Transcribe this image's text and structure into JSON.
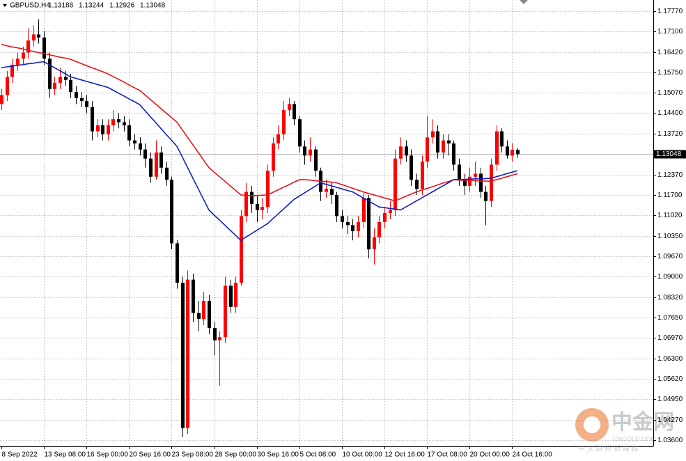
{
  "chart_data": {
    "type": "candlestick",
    "title": "GBPUSD,H4",
    "up_color": "#ff0000",
    "down_color": "#000000",
    "grid": true,
    "categories": [
      "8 Sep 2022",
      null,
      null,
      null,
      null,
      null,
      null,
      null,
      "13 Sep 08:00",
      null,
      null,
      null,
      null,
      null,
      null,
      null,
      "16 Sep 00:00",
      null,
      null,
      null,
      null,
      null,
      null,
      null,
      "20 Sep 16:00",
      null,
      null,
      null,
      null,
      null,
      null,
      null,
      "23 Sep 08:00",
      null,
      null,
      null,
      null,
      null,
      null,
      null,
      "28 Sep 00:00",
      null,
      null,
      null,
      null,
      null,
      null,
      null,
      "30 Sep 16:00",
      null,
      null,
      null,
      null,
      null,
      null,
      null,
      "5 Oct 08:00",
      null,
      null,
      null,
      null,
      null,
      null,
      null,
      "10 Oct 00:00",
      null,
      null,
      null,
      null,
      null,
      null,
      null,
      "12 Oct 16:00",
      null,
      null,
      null,
      null,
      null,
      null,
      null,
      "17 Oct 08:00",
      null,
      null,
      null,
      null,
      null,
      null,
      null,
      "20 Oct 00:00",
      null,
      null,
      null,
      null,
      null,
      null,
      null,
      "24 Oct 16:00",
      null
    ],
    "open": [
      1.147,
      1.15,
      1.156,
      1.16,
      1.162,
      1.164,
      1.168,
      1.17,
      1.169,
      1.162,
      1.152,
      1.154,
      1.156,
      1.155,
      1.151,
      1.149,
      1.148,
      1.146,
      1.138,
      1.14,
      1.137,
      1.14,
      1.142,
      1.141,
      1.14,
      1.135,
      1.134,
      1.132,
      1.129,
      1.123,
      1.131,
      1.126,
      1.122,
      1.101,
      1.088,
      1.04,
      1.089,
      1.078,
      1.076,
      1.082,
      1.073,
      1.069,
      1.07,
      1.087,
      1.08,
      1.088,
      1.11,
      1.118,
      1.114,
      1.112,
      1.113,
      1.125,
      1.134,
      1.137,
      1.145,
      1.147,
      1.142,
      1.133,
      1.13,
      1.132,
      1.125,
      1.118,
      1.119,
      1.117,
      1.11,
      1.108,
      1.107,
      1.105,
      1.108,
      1.116,
      1.099,
      1.103,
      1.108,
      1.111,
      1.112,
      1.129,
      1.133,
      1.13,
      1.122,
      1.119,
      1.128,
      1.136,
      1.138,
      1.131,
      1.135,
      1.134,
      1.127,
      1.122,
      1.12,
      1.123,
      1.124,
      1.118,
      1.115,
      1.127,
      1.138,
      1.133,
      1.13,
      1.13188
    ],
    "high": [
      1.152,
      1.158,
      1.162,
      1.164,
      1.166,
      1.172,
      1.173,
      1.175,
      1.171,
      1.164,
      1.156,
      1.159,
      1.158,
      1.157,
      1.153,
      1.151,
      1.15,
      1.148,
      1.142,
      1.142,
      1.142,
      1.145,
      1.144,
      1.143,
      1.142,
      1.137,
      1.136,
      1.134,
      1.131,
      1.135,
      1.133,
      1.128,
      1.123,
      1.102,
      1.09,
      1.092,
      1.091,
      1.082,
      1.085,
      1.084,
      1.075,
      1.072,
      1.09,
      1.089,
      1.09,
      1.112,
      1.121,
      1.12,
      1.117,
      1.116,
      1.127,
      1.136,
      1.14,
      1.148,
      1.149,
      1.148,
      1.143,
      1.135,
      1.136,
      1.133,
      1.126,
      1.122,
      1.121,
      1.118,
      1.112,
      1.11,
      1.109,
      1.11,
      1.118,
      1.117,
      1.106,
      1.11,
      1.113,
      1.115,
      1.132,
      1.136,
      1.135,
      1.132,
      1.124,
      1.13,
      1.143,
      1.142,
      1.14,
      1.137,
      1.137,
      1.135,
      1.129,
      1.124,
      1.126,
      1.128,
      1.126,
      1.12,
      1.129,
      1.14,
      1.139,
      1.135,
      1.134,
      1.13244
    ],
    "low": [
      1.145,
      1.148,
      1.154,
      1.158,
      1.16,
      1.162,
      1.166,
      1.167,
      1.16,
      1.149,
      1.15,
      1.152,
      1.153,
      1.149,
      1.147,
      1.146,
      1.144,
      1.135,
      1.136,
      1.135,
      1.135,
      1.138,
      1.139,
      1.138,
      1.133,
      1.132,
      1.13,
      1.126,
      1.121,
      1.122,
      1.124,
      1.12,
      1.099,
      1.086,
      1.037,
      1.038,
      1.075,
      1.072,
      1.074,
      1.071,
      1.064,
      1.054,
      1.068,
      1.078,
      1.078,
      1.087,
      1.108,
      1.111,
      1.108,
      1.109,
      1.111,
      1.123,
      1.132,
      1.135,
      1.143,
      1.14,
      1.131,
      1.127,
      1.128,
      1.123,
      1.115,
      1.116,
      1.114,
      1.108,
      1.106,
      1.104,
      1.102,
      1.103,
      1.106,
      1.096,
      1.094,
      1.101,
      1.106,
      1.109,
      1.11,
      1.127,
      1.128,
      1.12,
      1.117,
      1.117,
      1.126,
      1.134,
      1.129,
      1.129,
      1.13,
      1.125,
      1.12,
      1.117,
      1.118,
      1.12,
      1.116,
      1.107,
      1.113,
      1.125,
      1.131,
      1.129,
      1.128,
      1.12926
    ],
    "close": [
      1.15,
      1.156,
      1.16,
      1.162,
      1.164,
      1.168,
      1.17,
      1.169,
      1.162,
      1.152,
      1.154,
      1.156,
      1.155,
      1.151,
      1.149,
      1.148,
      1.146,
      1.138,
      1.14,
      1.137,
      1.14,
      1.142,
      1.141,
      1.14,
      1.135,
      1.134,
      1.132,
      1.129,
      1.123,
      1.131,
      1.126,
      1.122,
      1.101,
      1.088,
      1.04,
      1.089,
      1.078,
      1.076,
      1.082,
      1.073,
      1.069,
      1.07,
      1.087,
      1.08,
      1.088,
      1.11,
      1.118,
      1.114,
      1.112,
      1.113,
      1.125,
      1.134,
      1.137,
      1.145,
      1.147,
      1.142,
      1.133,
      1.13,
      1.132,
      1.125,
      1.118,
      1.119,
      1.117,
      1.11,
      1.108,
      1.107,
      1.105,
      1.108,
      1.116,
      1.099,
      1.103,
      1.108,
      1.111,
      1.112,
      1.129,
      1.133,
      1.13,
      1.122,
      1.119,
      1.128,
      1.136,
      1.138,
      1.131,
      1.135,
      1.134,
      1.127,
      1.122,
      1.12,
      1.123,
      1.124,
      1.118,
      1.115,
      1.127,
      1.138,
      1.133,
      1.13,
      1.1319,
      1.13048
    ],
    "overlays": [
      {
        "color": "#e8141b",
        "values": [
          1.1667,
          1.1663,
          1.1659,
          1.1656,
          1.1652,
          1.1648,
          1.1644,
          1.164,
          1.1637,
          1.1633,
          1.1629,
          1.1625,
          1.1622,
          1.1618,
          1.1611,
          1.1604,
          1.1597,
          1.159,
          1.1584,
          1.1577,
          1.157,
          1.1561,
          1.1552,
          1.1543,
          1.1533,
          1.1524,
          1.1515,
          1.15,
          1.1485,
          1.147,
          1.1455,
          1.144,
          1.1425,
          1.141,
          1.1385,
          1.136,
          1.1335,
          1.131,
          1.1285,
          1.126,
          1.1245,
          1.123,
          1.1215,
          1.12,
          1.1185,
          1.117,
          1.1168,
          1.1167,
          1.1168,
          1.1169,
          1.117,
          1.1178,
          1.1187,
          1.1195,
          1.1203,
          1.1212,
          1.122,
          1.122,
          1.1219,
          1.1217,
          1.1215,
          1.1214,
          1.1212,
          1.121,
          1.1204,
          1.1198,
          1.1192,
          1.1186,
          1.118,
          1.1175,
          1.117,
          1.1165,
          1.116,
          1.1155,
          1.115,
          1.1158,
          1.1165,
          1.1173,
          1.118,
          1.1186,
          1.1191,
          1.1197,
          1.1203,
          1.1209,
          1.1214,
          1.122,
          1.1219,
          1.1218,
          1.1218,
          1.1217,
          1.1216,
          1.1216,
          1.1215,
          1.122,
          1.1225,
          1.123,
          1.1235,
          1.124
        ]
      },
      {
        "color": "#1020c0",
        "values": [
          1.159,
          1.1593,
          1.1595,
          1.1598,
          1.16,
          1.1603,
          1.1605,
          1.1608,
          1.161,
          1.16,
          1.159,
          1.158,
          1.157,
          1.156,
          1.1555,
          1.155,
          1.1545,
          1.154,
          1.1535,
          1.153,
          1.1525,
          1.1516,
          1.1506,
          1.1497,
          1.1487,
          1.1478,
          1.1468,
          1.1448,
          1.1428,
          1.1409,
          1.1389,
          1.1369,
          1.135,
          1.133,
          1.1295,
          1.126,
          1.1225,
          1.119,
          1.1155,
          1.112,
          1.1103,
          1.1087,
          1.107,
          1.1053,
          1.1037,
          1.102,
          1.1031,
          1.1042,
          1.1053,
          1.1064,
          1.1075,
          1.1091,
          1.1107,
          1.1123,
          1.1139,
          1.1155,
          1.1166,
          1.1177,
          1.1188,
          1.1199,
          1.121,
          1.1205,
          1.12,
          1.1195,
          1.119,
          1.1185,
          1.118,
          1.117,
          1.116,
          1.115,
          1.114,
          1.113,
          1.1128,
          1.1125,
          1.1123,
          1.112,
          1.113,
          1.114,
          1.115,
          1.116,
          1.117,
          1.118,
          1.119,
          1.12,
          1.121,
          1.122,
          1.1221,
          1.1221,
          1.1222,
          1.1223,
          1.1223,
          1.1224,
          1.1225,
          1.123,
          1.1235,
          1.124,
          1.1245,
          1.125
        ]
      }
    ],
    "ylim": [
      1.03393,
      1.18138
    ],
    "yticks": [
      {
        "value": 1.1777,
        "label": "1.17770"
      },
      {
        "value": 1.171,
        "label": "1.17100"
      },
      {
        "value": 1.1642,
        "label": "1.16420"
      },
      {
        "value": 1.1575,
        "label": "1.15750"
      },
      {
        "value": 1.1507,
        "label": "1.15070"
      },
      {
        "value": 1.144,
        "label": "1.14400"
      },
      {
        "value": 1.1372,
        "label": "1.13720"
      },
      {
        "value": 1.1237,
        "label": "1.12370"
      },
      {
        "value": 1.117,
        "label": "1.11700"
      },
      {
        "value": 1.1102,
        "label": "1.11020"
      },
      {
        "value": 1.1035,
        "label": "1.10350"
      },
      {
        "value": 1.0967,
        "label": "1.09670"
      },
      {
        "value": 1.09,
        "label": "1.09000"
      },
      {
        "value": 1.0832,
        "label": "1.08320"
      },
      {
        "value": 1.0765,
        "label": "1.07650"
      },
      {
        "value": 1.0697,
        "label": "1.06970"
      },
      {
        "value": 1.063,
        "label": "1.06300"
      },
      {
        "value": 1.0562,
        "label": "1.05620"
      },
      {
        "value": 1.0495,
        "label": "1.04950"
      },
      {
        "value": 1.0427,
        "label": "1.04270"
      },
      {
        "value": 1.036,
        "label": "1.03600"
      }
    ],
    "last_price": 1.13048,
    "watermark": {
      "brand": "中金网",
      "site": "CNGOLD.COM",
      "slogan": "中 文 财 经 新 媒 体"
    }
  }
}
